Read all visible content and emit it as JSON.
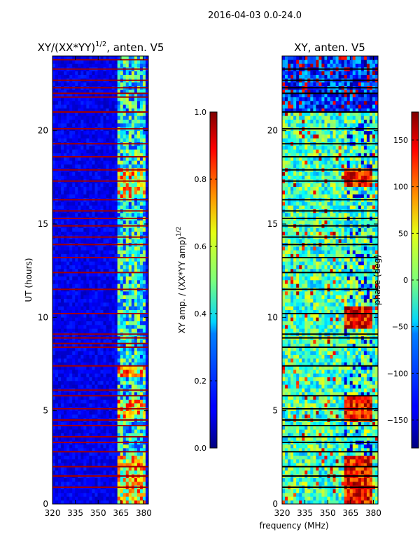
{
  "figure_title": "2016-04-03 0.0-24.0",
  "shared_xlabel": "frequency (MHz)",
  "chart_data": [
    {
      "type": "heatmap",
      "title": "XY/(XX*YY)",
      "title_exponent": "1/2",
      "title_suffix": ", anten. V5",
      "xlabel": "",
      "ylabel": "UT (hours)",
      "xlim": [
        320,
        383
      ],
      "ylim": [
        0,
        24
      ],
      "xticks": [
        320,
        335,
        350,
        365,
        380
      ],
      "yticks": [
        0,
        5,
        10,
        15,
        20
      ],
      "colormap": "jet",
      "colorbar": {
        "label": "XY amp. / (XX*YY amp)",
        "label_exponent": "1/2",
        "range": [
          0.0,
          1.0
        ],
        "ticks": [
          0.0,
          0.2,
          0.4,
          0.6,
          0.8,
          1.0
        ],
        "tick_labels": [
          "0.0",
          "0.2",
          "0.4",
          "0.6",
          "0.8",
          "1.0"
        ]
      },
      "flagged_hours_red": [
        0.9,
        1.5,
        2.0,
        2.8,
        3.3,
        3.6,
        4.2,
        4.5,
        5.1,
        5.8,
        6.1,
        7.4,
        8.4,
        8.6,
        8.9,
        9.1,
        10.2,
        11.5,
        12.4,
        13.2,
        13.9,
        14.3,
        14.9,
        15.3,
        15.7,
        16.3,
        17.3,
        17.9,
        18.6,
        19.3,
        20.1,
        21.0,
        21.8,
        22.0,
        22.3,
        22.7,
        23.3,
        23.8
      ],
      "bright_band_mhz": [
        363,
        381
      ],
      "bright_band_hours": [
        [
          0,
          2.6
        ],
        [
          4.6,
          5.6
        ],
        [
          6.8,
          7.3
        ],
        [
          16.4,
          18.0
        ]
      ]
    },
    {
      "type": "heatmap",
      "title": "XY, anten. V5",
      "xlabel": "frequency (MHz)",
      "ylabel": "",
      "xlim": [
        320,
        383
      ],
      "ylim": [
        0,
        24
      ],
      "xticks": [
        320,
        335,
        350,
        365,
        380
      ],
      "yticks": [
        0,
        5,
        10,
        15,
        20
      ],
      "colormap": "jet",
      "colorbar": {
        "label": "phase (deg)",
        "range": [
          -180,
          180
        ],
        "ticks": [
          -150,
          -100,
          -50,
          0,
          50,
          100,
          150
        ],
        "tick_labels": [
          "−150",
          "−100",
          "−50",
          "0",
          "50",
          "100",
          "150"
        ]
      },
      "flagged_hours_black": [
        0.9,
        1.5,
        2.0,
        2.8,
        3.3,
        3.6,
        4.2,
        4.5,
        5.1,
        5.8,
        7.4,
        8.4,
        8.9,
        9.1,
        10.2,
        11.5,
        12.4,
        13.2,
        13.9,
        14.3,
        14.9,
        15.3,
        15.7,
        16.3,
        17.3,
        17.9,
        18.6,
        19.3,
        20.1,
        21.0,
        22.0,
        22.3,
        22.7,
        23.3
      ],
      "high_phase_band_mhz": [
        360,
        380
      ],
      "high_phase_hours": [
        [
          0,
          2.6
        ],
        [
          4.5,
          5.7
        ],
        [
          9.5,
          10.6
        ],
        [
          17.0,
          18.0
        ]
      ],
      "night_block_hours": [
        21.0,
        24.0
      ]
    }
  ]
}
